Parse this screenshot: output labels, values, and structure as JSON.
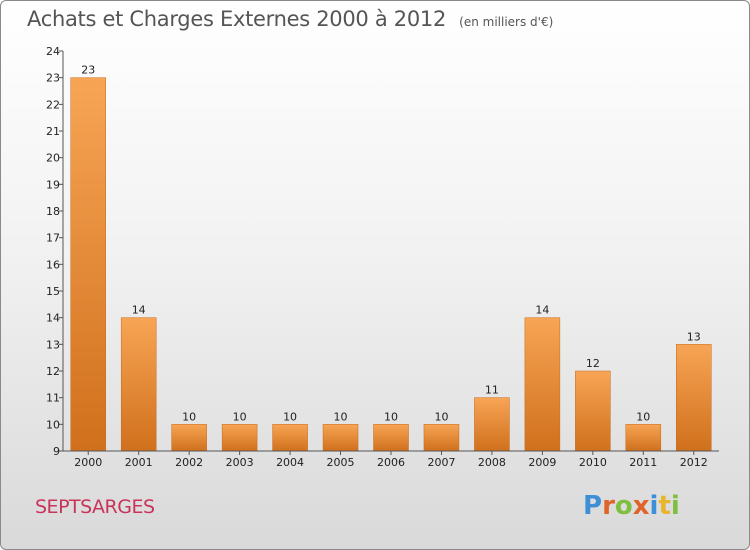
{
  "chart_data": {
    "type": "bar",
    "title": "Achats et Charges Externes 2000 à 2012",
    "subtitle": "(en milliers d'€)",
    "categories": [
      "2000",
      "2001",
      "2002",
      "2003",
      "2004",
      "2005",
      "2006",
      "2007",
      "2008",
      "2009",
      "2010",
      "2011",
      "2012"
    ],
    "values": [
      23,
      14,
      10,
      10,
      10,
      10,
      10,
      10,
      11,
      14,
      12,
      10,
      13
    ],
    "ylim": [
      9,
      24
    ],
    "yticks": [
      9,
      10,
      11,
      12,
      13,
      14,
      15,
      16,
      17,
      18,
      19,
      20,
      21,
      22,
      23,
      24
    ],
    "bar_color": "#e8882e",
    "grid": false
  },
  "footer": {
    "place": "SEPTSARGES",
    "logo_letters": [
      "P",
      "r",
      "o",
      "x",
      "i",
      "t",
      "i"
    ],
    "logo_colors": [
      "#3f8fd6",
      "#e0632a",
      "#7fbf3f",
      "#e0632a",
      "#3f8fd6",
      "#e8b52e",
      "#7fbf3f"
    ]
  }
}
